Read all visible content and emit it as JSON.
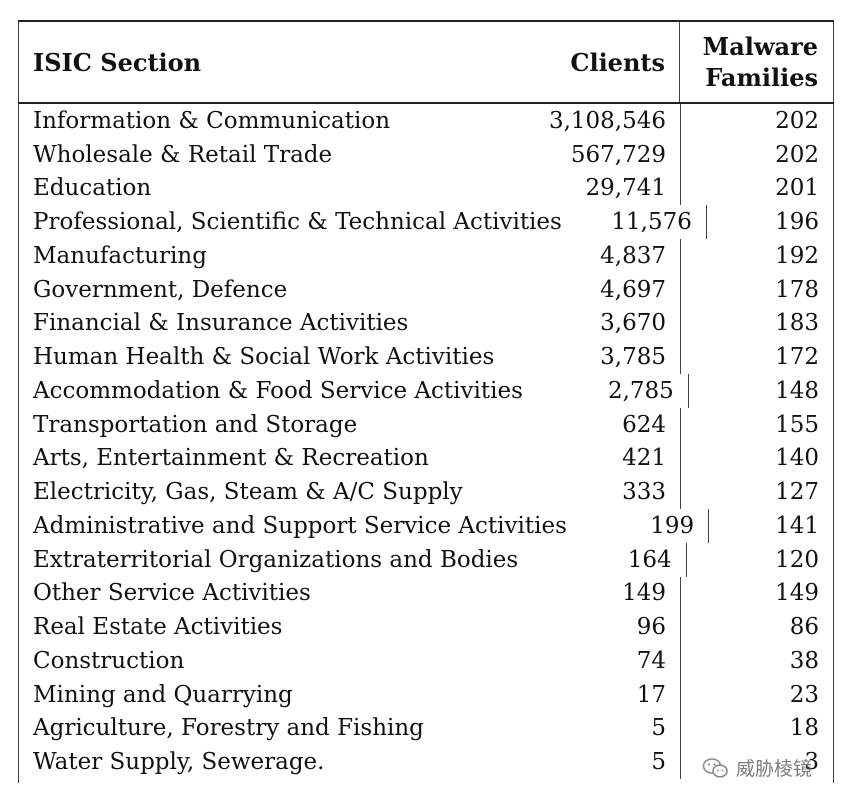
{
  "table": {
    "headers": {
      "section": "ISIC Section",
      "clients": "Clients",
      "malware_line1": "Malware",
      "malware_line2": "Families"
    },
    "rows": [
      {
        "section": "Information & Communication",
        "clients": "3,108,546",
        "malware": "202"
      },
      {
        "section": "Wholesale & Retail Trade",
        "clients": "567,729",
        "malware": "202"
      },
      {
        "section": "Education",
        "clients": "29,741",
        "malware": "201"
      },
      {
        "section": "Professional, Scientific & Technical Activities",
        "clients": "11,576",
        "malware": "196"
      },
      {
        "section": "Manufacturing",
        "clients": "4,837",
        "malware": "192"
      },
      {
        "section": "Government, Defence",
        "clients": "4,697",
        "malware": "178"
      },
      {
        "section": "Financial & Insurance Activities",
        "clients": "3,670",
        "malware": "183"
      },
      {
        "section": "Human Health & Social Work Activities",
        "clients": "3,785",
        "malware": "172"
      },
      {
        "section": "Accommodation & Food Service Activities",
        "clients": "2,785",
        "malware": "148"
      },
      {
        "section": "Transportation and Storage",
        "clients": "624",
        "malware": "155"
      },
      {
        "section": "Arts, Entertainment & Recreation",
        "clients": "421",
        "malware": "140"
      },
      {
        "section": "Electricity, Gas, Steam & A/C Supply",
        "clients": "333",
        "malware": "127"
      },
      {
        "section": "Administrative and Support Service Activities",
        "clients": "199",
        "malware": "141"
      },
      {
        "section": "Extraterritorial Organizations and Bodies",
        "clients": "164",
        "malware": "120"
      },
      {
        "section": "Other Service Activities",
        "clients": "149",
        "malware": "149"
      },
      {
        "section": "Real Estate Activities",
        "clients": "96",
        "malware": "86"
      },
      {
        "section": "Construction",
        "clients": "74",
        "malware": "38"
      },
      {
        "section": "Mining and Quarrying",
        "clients": "17",
        "malware": "23"
      },
      {
        "section": "Agriculture, Forestry and Fishing",
        "clients": "5",
        "malware": "18"
      },
      {
        "section": "Water Supply, Sewerage.",
        "clients": "5",
        "malware": "3"
      }
    ]
  },
  "watermark": {
    "icon": "wechat-icon",
    "text": "威胁棱镜"
  },
  "colors": {
    "text": "#111111",
    "rule": "#222222",
    "watermark": "#666666"
  }
}
